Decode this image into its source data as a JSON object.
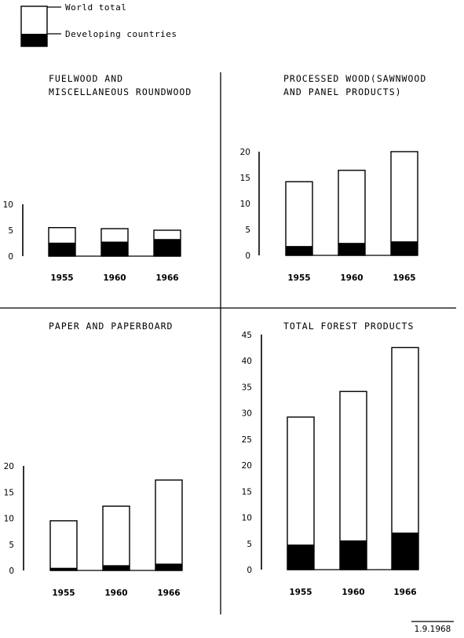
{
  "legend": {
    "world_total": "World total",
    "developing": "Developing countries"
  },
  "footer": {
    "date": "1.9.1968"
  },
  "chart_data": [
    {
      "type": "bar",
      "title": "FUELWOOD AND MISCELLANEOUS ROUNDWOOD",
      "title_lines": [
        "FUELWOOD AND",
        "MISCELLANEOUS ROUNDWOOD"
      ],
      "categories": [
        "1955",
        "1960",
        "1966"
      ],
      "yticks": [
        0,
        5,
        10
      ],
      "ylim": [
        0,
        10
      ],
      "series": [
        {
          "name": "World total",
          "values": [
            5.5,
            5.3,
            5.0
          ]
        },
        {
          "name": "Developing countries",
          "values": [
            2.6,
            2.8,
            3.3
          ]
        }
      ]
    },
    {
      "type": "bar",
      "title": "PROCESSED WOOD (SAWNWOOD AND PANEL PRODUCTS)",
      "title_lines": [
        "PROCESSED WOOD(SAWNWOOD",
        "AND PANEL PRODUCTS)"
      ],
      "categories": [
        "1955",
        "1960",
        "1965"
      ],
      "yticks": [
        0,
        5,
        10,
        15,
        20
      ],
      "ylim": [
        0,
        20
      ],
      "series": [
        {
          "name": "World total",
          "values": [
            14.2,
            16.4,
            20.0
          ]
        },
        {
          "name": "Developing countries",
          "values": [
            1.8,
            2.4,
            2.7
          ]
        }
      ]
    },
    {
      "type": "bar",
      "title": "PAPER AND PAPERBOARD",
      "title_lines": [
        "PAPER AND PAPERBOARD"
      ],
      "categories": [
        "1955",
        "1960",
        "1966"
      ],
      "yticks": [
        0,
        5,
        10,
        15,
        20
      ],
      "ylim": [
        0,
        20
      ],
      "series": [
        {
          "name": "World total",
          "values": [
            9.5,
            12.3,
            17.3
          ]
        },
        {
          "name": "Developing countries",
          "values": [
            0.5,
            1.0,
            1.3
          ]
        }
      ]
    },
    {
      "type": "bar",
      "title": "TOTAL FOREST PRODUCTS",
      "title_lines": [
        "TOTAL FOREST PRODUCTS"
      ],
      "categories": [
        "1955",
        "1960",
        "1966"
      ],
      "yticks": [
        0,
        5,
        10,
        15,
        20,
        25,
        30,
        35,
        40,
        45
      ],
      "ylim": [
        0,
        45
      ],
      "series": [
        {
          "name": "World total",
          "values": [
            29.2,
            34.1,
            42.5
          ]
        },
        {
          "name": "Developing countries",
          "values": [
            4.8,
            5.6,
            7.1
          ]
        }
      ]
    }
  ]
}
